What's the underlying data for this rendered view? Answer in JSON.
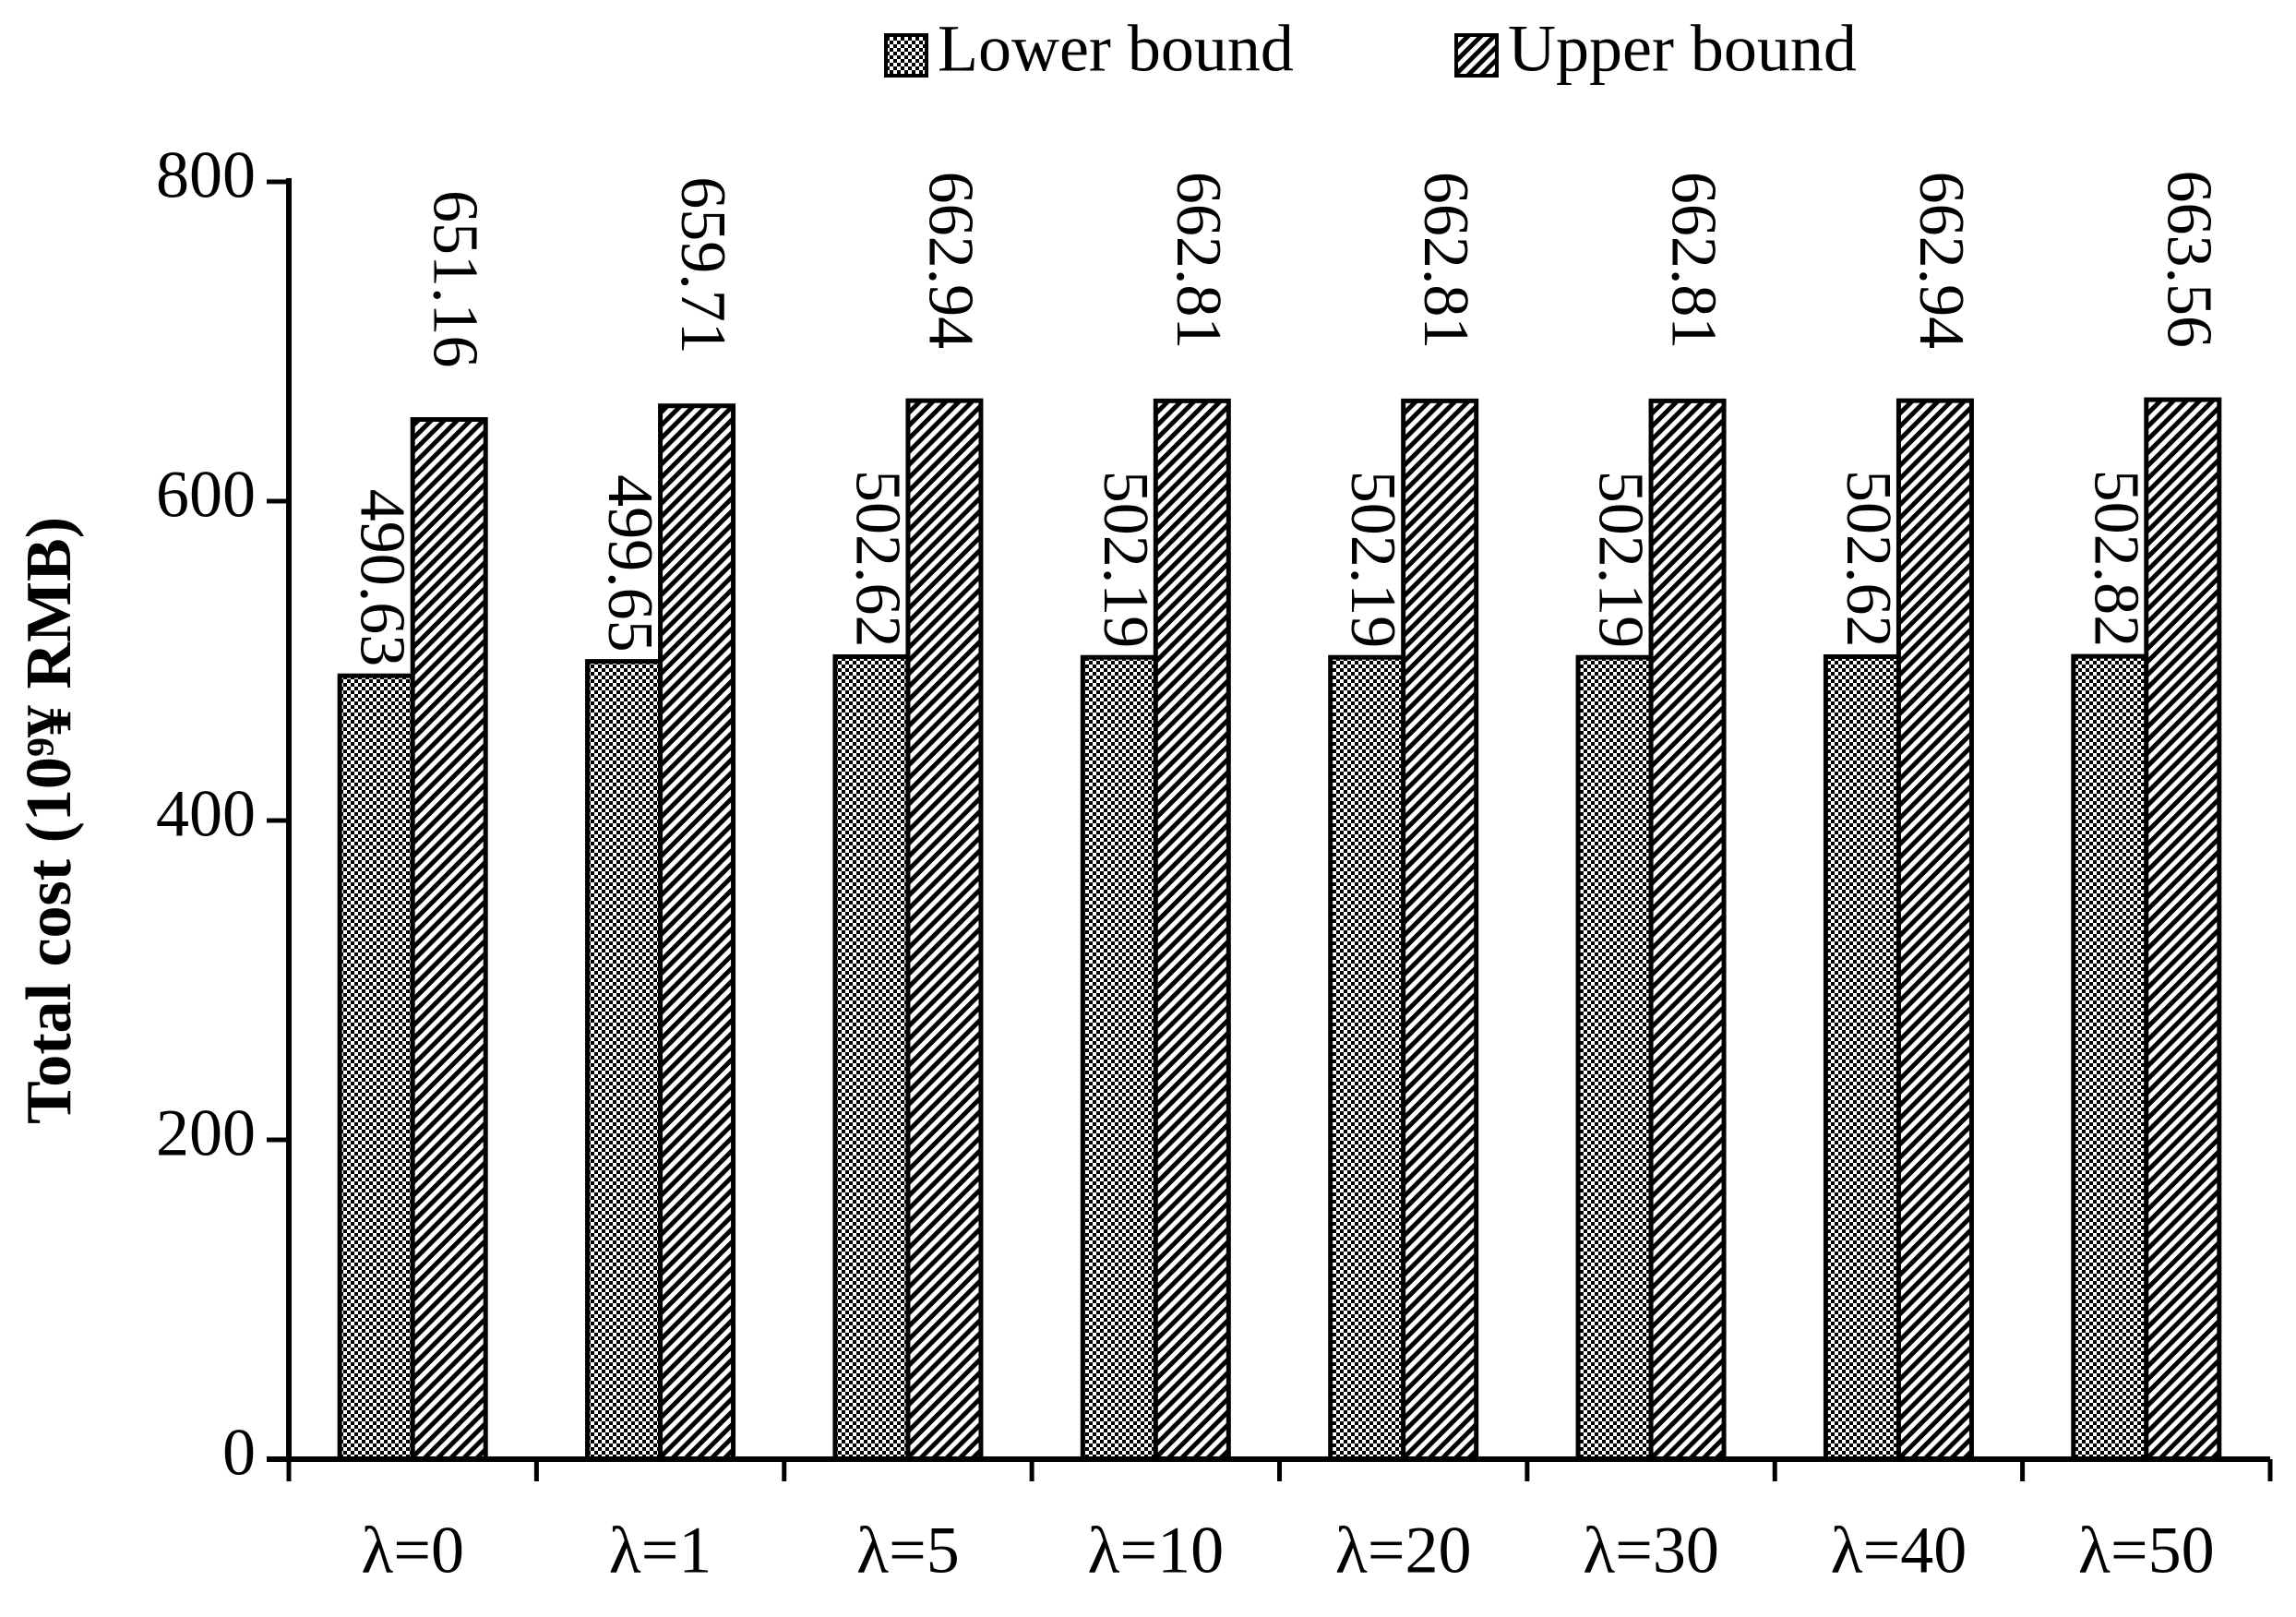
{
  "chart_data": {
    "type": "bar",
    "y_label": "Total cost (10⁹¥ RMB)",
    "categories": [
      "λ=0",
      "λ=1",
      "λ=5",
      "λ=10",
      "λ=20",
      "λ=30",
      "λ=40",
      "λ=50"
    ],
    "series": [
      {
        "name": "Lower bound",
        "color": "#000000",
        "pattern": "checker",
        "values": [
          490.63,
          499.65,
          502.62,
          502.19,
          502.19,
          502.19,
          502.62,
          502.82
        ]
      },
      {
        "name": "Upper bound",
        "color": "#000000",
        "pattern": "diagonal",
        "values": [
          651.16,
          659.71,
          662.94,
          662.81,
          662.81,
          662.81,
          662.94,
          663.56
        ]
      }
    ],
    "ylim": [
      0,
      800
    ],
    "yticks": [
      0,
      200,
      400,
      600,
      800
    ],
    "legend": "top",
    "data_labels": true
  }
}
